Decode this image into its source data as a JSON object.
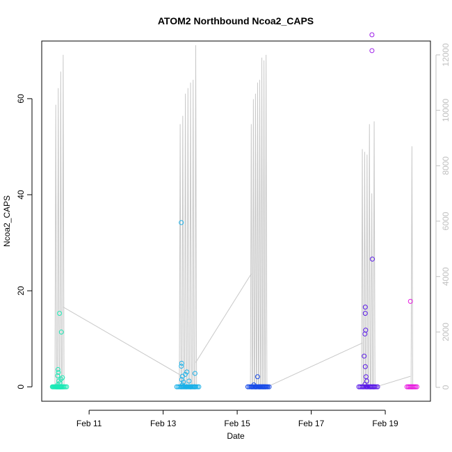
{
  "chart_data": {
    "type": "scatter",
    "title": "ATOM2 Northbound Ncoa2_CAPS",
    "xlabel": "Date",
    "ylabel": "Ncoa2_CAPS",
    "x_ticks": [
      "Feb 11",
      "Feb 13",
      "Feb 15",
      "Feb 17",
      "Feb 19"
    ],
    "x_range_days": [
      9.72,
      20.22
    ],
    "ylim": [
      -3,
      72
    ],
    "y_ticks": [
      0,
      20,
      40,
      60
    ],
    "y2_ticks": [
      0,
      2000,
      4000,
      6000,
      8000,
      10000,
      12000
    ],
    "y2lim": [
      -500,
      12500
    ],
    "y2_color": "#c0c0c0",
    "points": [
      {
        "x": 10.14,
        "y": 0,
        "color": "#1de9b6"
      },
      {
        "x": 10.16,
        "y": 0.5,
        "color": "#1de9b6"
      },
      {
        "x": 10.18,
        "y": 1.2,
        "color": "#1de9b6"
      },
      {
        "x": 10.15,
        "y": 2.3,
        "color": "#1de9b6"
      },
      {
        "x": 10.17,
        "y": 3.0,
        "color": "#1de9b6"
      },
      {
        "x": 10.16,
        "y": 3.6,
        "color": "#1de9b6"
      },
      {
        "x": 10.21,
        "y": 0.8,
        "color": "#1de9b6"
      },
      {
        "x": 10.24,
        "y": 1.6,
        "color": "#1de9b6"
      },
      {
        "x": 10.28,
        "y": 1.9,
        "color": "#1de9b6"
      },
      {
        "x": 10.2,
        "y": 15.3,
        "color": "#1de9b6"
      },
      {
        "x": 10.25,
        "y": 11.4,
        "color": "#1de9b6"
      },
      {
        "x": 10.12,
        "y": 0,
        "color": "#1de9b6"
      },
      {
        "x": 10.2,
        "y": 0,
        "color": "#1de9b6"
      },
      {
        "x": 10.24,
        "y": 0,
        "color": "#1de9b6"
      },
      {
        "x": 10.28,
        "y": 0,
        "color": "#1de9b6"
      },
      {
        "x": 13.48,
        "y": 0,
        "color": "#1ab0e8"
      },
      {
        "x": 13.52,
        "y": 0.4,
        "color": "#1ab0e8"
      },
      {
        "x": 13.55,
        "y": 1.0,
        "color": "#1ab0e8"
      },
      {
        "x": 13.5,
        "y": 1.5,
        "color": "#1ab0e8"
      },
      {
        "x": 13.52,
        "y": 2.2,
        "color": "#1ab0e8"
      },
      {
        "x": 13.49,
        "y": 4.3,
        "color": "#1ab0e8"
      },
      {
        "x": 13.5,
        "y": 4.9,
        "color": "#1ab0e8"
      },
      {
        "x": 13.6,
        "y": 2.6,
        "color": "#1ab0e8"
      },
      {
        "x": 13.64,
        "y": 3.1,
        "color": "#1ab0e8"
      },
      {
        "x": 13.7,
        "y": 1.2,
        "color": "#1ab0e8"
      },
      {
        "x": 13.86,
        "y": 2.8,
        "color": "#1ab0e8"
      },
      {
        "x": 13.49,
        "y": 34.2,
        "color": "#1ab0e8"
      },
      {
        "x": 13.62,
        "y": 0,
        "color": "#1ab0e8"
      },
      {
        "x": 13.75,
        "y": 0,
        "color": "#1ab0e8"
      },
      {
        "x": 13.85,
        "y": 0,
        "color": "#1ab0e8"
      },
      {
        "x": 15.4,
        "y": 0,
        "color": "#1a4ce8"
      },
      {
        "x": 15.45,
        "y": 0.4,
        "color": "#1a4ce8"
      },
      {
        "x": 15.5,
        "y": 0,
        "color": "#1a4ce8"
      },
      {
        "x": 15.55,
        "y": 2.1,
        "color": "#1a4ce8"
      },
      {
        "x": 15.6,
        "y": 0,
        "color": "#1a4ce8"
      },
      {
        "x": 15.7,
        "y": 0,
        "color": "#1a4ce8"
      },
      {
        "x": 15.75,
        "y": 0,
        "color": "#1a4ce8"
      },
      {
        "x": 18.4,
        "y": 0,
        "color": "#5a1ae8"
      },
      {
        "x": 18.45,
        "y": 0.5,
        "color": "#5a1ae8"
      },
      {
        "x": 18.5,
        "y": 1.2,
        "color": "#5a1ae8"
      },
      {
        "x": 18.48,
        "y": 2.1,
        "color": "#5a1ae8"
      },
      {
        "x": 18.46,
        "y": 4.2,
        "color": "#5a1ae8"
      },
      {
        "x": 18.43,
        "y": 6.4,
        "color": "#5a1ae8"
      },
      {
        "x": 18.45,
        "y": 11.0,
        "color": "#5a1ae8"
      },
      {
        "x": 18.47,
        "y": 11.8,
        "color": "#5a1ae8"
      },
      {
        "x": 18.46,
        "y": 15.3,
        "color": "#5a1ae8"
      },
      {
        "x": 18.46,
        "y": 16.6,
        "color": "#5a1ae8"
      },
      {
        "x": 18.65,
        "y": 26.6,
        "color": "#5a1ae8"
      },
      {
        "x": 18.6,
        "y": 0,
        "color": "#5a1ae8"
      },
      {
        "x": 18.68,
        "y": 0,
        "color": "#5a1ae8"
      },
      {
        "x": 18.64,
        "y": 70.0,
        "color": "#9b1ae8"
      },
      {
        "x": 18.64,
        "y": 73.3,
        "color": "#9b1ae8"
      },
      {
        "x": 19.68,
        "y": 17.8,
        "color": "#e81ae0"
      },
      {
        "x": 19.7,
        "y": 0,
        "color": "#e81ae0"
      },
      {
        "x": 19.74,
        "y": 0,
        "color": "#e81ae0"
      }
    ],
    "secondary_line": {
      "color": "#c8c8c8",
      "bursts": [
        {
          "x0": 10.1,
          "x1": 10.3,
          "peaks": [
            10200,
            10800,
            11400,
            12000
          ]
        },
        {
          "x0": 13.46,
          "x1": 13.88,
          "peaks": [
            9500,
            9800,
            10600,
            10800,
            11000,
            11100,
            12350
          ]
        },
        {
          "x0": 15.38,
          "x1": 15.78,
          "peaks": [
            9500,
            10400,
            10600,
            11000,
            11100,
            11900,
            11800,
            12000
          ]
        },
        {
          "x0": 18.38,
          "x1": 18.7,
          "peaks": [
            8600,
            8500,
            8400,
            9500,
            7000,
            9600
          ]
        },
        {
          "x0": 19.68,
          "x1": 19.76,
          "peaks": [
            8700
          ]
        }
      ],
      "connectors": [
        {
          "x0": 10.3,
          "y0": 2900,
          "x1": 13.46,
          "y1": 450
        },
        {
          "x0": 13.88,
          "y0": 900,
          "x1": 15.38,
          "y1": 4100
        },
        {
          "x0": 15.78,
          "y0": 0,
          "x1": 18.38,
          "y1": 1600
        },
        {
          "x0": 18.7,
          "y0": 0,
          "x1": 19.68,
          "y1": 400
        }
      ]
    }
  }
}
